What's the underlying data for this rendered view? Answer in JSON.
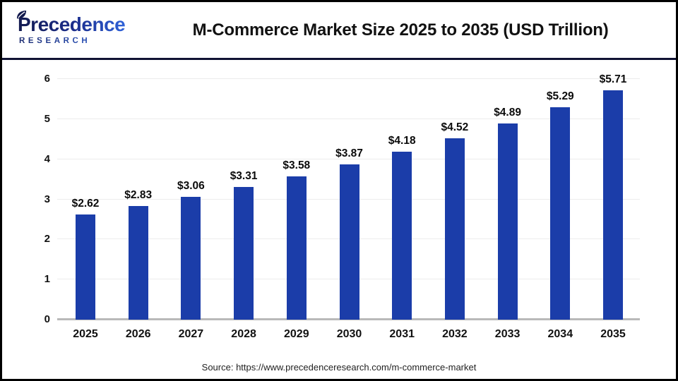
{
  "header": {
    "logo_line1": "Precedence",
    "logo_line2": "RESEARCH",
    "title": "M-Commerce Market Size 2025 to 2035 (USD Trillion)"
  },
  "chart_data": {
    "type": "bar",
    "title": "M-Commerce Market Size 2025 to 2035 (USD Trillion)",
    "categories": [
      "2025",
      "2026",
      "2027",
      "2028",
      "2029",
      "2030",
      "2031",
      "2032",
      "2033",
      "2034",
      "2035"
    ],
    "values": [
      2.62,
      2.83,
      3.06,
      3.31,
      3.58,
      3.87,
      4.18,
      4.52,
      4.89,
      5.29,
      5.71
    ],
    "value_labels": [
      "$2.62",
      "$2.83",
      "$3.06",
      "$3.31",
      "$3.58",
      "$3.87",
      "$4.18",
      "$4.52",
      "$4.89",
      "$5.29",
      "$5.71"
    ],
    "xlabel": "",
    "ylabel": "",
    "ylim": [
      0,
      6
    ],
    "yticks": [
      0,
      1,
      2,
      3,
      4,
      5,
      6
    ],
    "grid": true,
    "legend": "none",
    "bar_color": "#1b3da9"
  },
  "footer": {
    "source": "Source: https://www.precedenceresearch.com/m-commerce-market"
  },
  "colors": {
    "bar": "#1b3da9",
    "grid_line": "#ececec",
    "axis_baseline": "#b9b9b9",
    "outer_border": "#000000",
    "header_divider": "#101233",
    "logo_navy": "#131a4e",
    "logo_blue": "#2f62d9",
    "title_text": "#111111",
    "source_text": "#222222"
  }
}
